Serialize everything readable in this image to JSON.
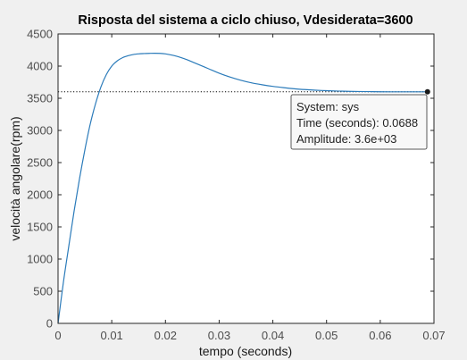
{
  "chart_data": {
    "type": "line",
    "title": "Risposta del sistema a ciclo chiuso, Vdesiderata=3600",
    "xlabel": "tempo (seconds)",
    "ylabel": "velocità angolare(rpm)",
    "xlim": [
      0,
      0.07
    ],
    "ylim": [
      0,
      4500
    ],
    "xticks": [
      0,
      0.01,
      0.02,
      0.03,
      0.04,
      0.05,
      0.06,
      0.07
    ],
    "xtick_labels": [
      "0",
      "0.01",
      "0.02",
      "0.03",
      "0.04",
      "0.05",
      "0.06",
      "0.07"
    ],
    "yticks": [
      0,
      500,
      1000,
      1500,
      2000,
      2500,
      3000,
      3500,
      4000,
      4500
    ],
    "ytick_labels": [
      "0",
      "500",
      "1000",
      "1500",
      "2000",
      "2500",
      "3000",
      "3500",
      "4000",
      "4500"
    ],
    "grid": false,
    "line_color": "#2b7bba",
    "reference_line": {
      "y": 3600,
      "style": "dotted",
      "color": "#000000"
    },
    "series": [
      {
        "x": [
          0,
          0.001,
          0.002,
          0.003,
          0.004,
          0.005,
          0.006,
          0.007,
          0.008,
          0.009,
          0.01,
          0.011,
          0.012,
          0.013,
          0.014,
          0.015,
          0.016,
          0.017,
          0.018,
          0.019,
          0.02,
          0.021,
          0.022,
          0.023,
          0.024,
          0.025,
          0.026,
          0.028,
          0.03,
          0.032,
          0.034,
          0.036,
          0.038,
          0.04,
          0.042,
          0.044,
          0.046,
          0.048,
          0.05,
          0.052,
          0.054,
          0.056,
          0.058,
          0.06,
          0.062,
          0.064,
          0.066,
          0.0688
        ],
        "y": [
          0,
          640,
          1200,
          1750,
          2250,
          2700,
          3100,
          3420,
          3680,
          3870,
          4000,
          4080,
          4130,
          4160,
          4180,
          4190,
          4195,
          4198,
          4200,
          4198,
          4190,
          4175,
          4155,
          4130,
          4100,
          4065,
          4030,
          3960,
          3890,
          3830,
          3780,
          3740,
          3710,
          3685,
          3665,
          3648,
          3635,
          3625,
          3618,
          3612,
          3608,
          3605,
          3603,
          3601,
          3600,
          3600,
          3600,
          3600
        ]
      }
    ],
    "marker": {
      "x": 0.0688,
      "y": 3600
    },
    "datatip": {
      "line1": "System: sys",
      "line2": "Time (seconds): 0.0688",
      "line3": "Amplitude: 3.6e+03"
    }
  }
}
